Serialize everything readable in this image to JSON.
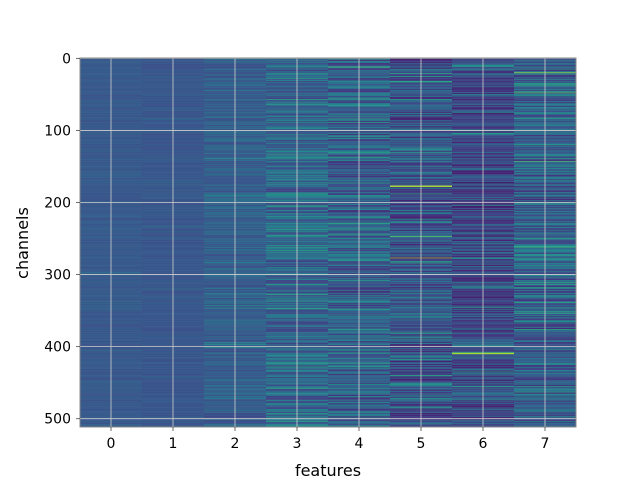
{
  "chart_data": {
    "type": "heatmap",
    "title": "",
    "xlabel": "features",
    "ylabel": "channels",
    "x_ticks": [
      "0",
      "1",
      "2",
      "3",
      "4",
      "5",
      "6",
      "7"
    ],
    "y_ticks": [
      0,
      100,
      200,
      300,
      400,
      500
    ],
    "y_tick_labels": [
      "0",
      "100",
      "200",
      "300",
      "400",
      "500"
    ],
    "xlim": [
      -0.5,
      7.5
    ],
    "ylim": [
      511.5,
      -0.5
    ],
    "n_channels": 512,
    "n_features": 8,
    "colormap": "viridis",
    "grid": true,
    "column_summary": [
      {
        "feature": 0,
        "typical": 0.28,
        "spread": 0.03
      },
      {
        "feature": 1,
        "typical": 0.27,
        "spread": 0.03
      },
      {
        "feature": 2,
        "typical": 0.3,
        "spread": 0.08
      },
      {
        "feature": 3,
        "typical": 0.33,
        "spread": 0.15
      },
      {
        "feature": 4,
        "typical": 0.3,
        "spread": 0.17
      },
      {
        "feature": 5,
        "typical": 0.26,
        "spread": 0.17
      },
      {
        "feature": 6,
        "typical": 0.22,
        "spread": 0.15
      },
      {
        "feature": 7,
        "typical": 0.3,
        "spread": 0.18
      }
    ],
    "notable_cells": [
      {
        "feature": 3,
        "channel": 100,
        "value": 0.55
      },
      {
        "feature": 3,
        "channel": 205,
        "value": 0.65
      },
      {
        "feature": 4,
        "channel": 12,
        "value": 0.7
      },
      {
        "feature": 4,
        "channel": 220,
        "value": 0.55
      },
      {
        "feature": 5,
        "channel": 177,
        "value": 0.9
      },
      {
        "feature": 5,
        "channel": 178,
        "value": 0.85
      },
      {
        "feature": 5,
        "channel": 247,
        "value": 0.75
      },
      {
        "feature": 5,
        "channel": 277,
        "value": 0.85
      },
      {
        "feature": 6,
        "channel": 409,
        "value": 0.9
      },
      {
        "feature": 6,
        "channel": 410,
        "value": 0.85
      },
      {
        "feature": 7,
        "channel": 20,
        "value": 0.85
      },
      {
        "feature": 7,
        "channel": 48,
        "value": 0.75
      },
      {
        "feature": 7,
        "channel": 143,
        "value": 0.7
      },
      {
        "feature": 7,
        "channel": 262,
        "value": 0.65
      }
    ]
  }
}
